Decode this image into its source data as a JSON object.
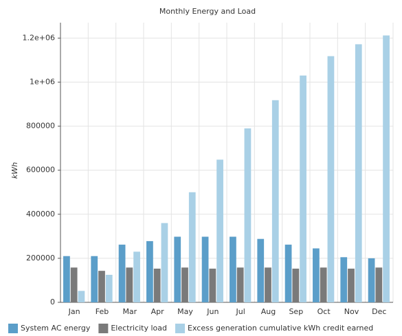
{
  "chart_data": {
    "type": "bar",
    "title": "Monthly Energy and Load",
    "y_label": "kWh",
    "categories": [
      "Jan",
      "Feb",
      "Mar",
      "Apr",
      "May",
      "Jun",
      "Jul",
      "Aug",
      "Sep",
      "Oct",
      "Nov",
      "Dec"
    ],
    "series": [
      {
        "name": "System AC energy",
        "color": "#5b9ec9",
        "values": [
          210000,
          210000,
          262000,
          278000,
          298000,
          298000,
          298000,
          288000,
          262000,
          245000,
          205000,
          200000
        ]
      },
      {
        "name": "Electricity load",
        "color": "#7a7a7a",
        "values": [
          158000,
          143000,
          158000,
          153000,
          158000,
          153000,
          158000,
          158000,
          153000,
          158000,
          153000,
          158000
        ]
      },
      {
        "name": "Excess generation cumulative kWh credit earned",
        "color": "#a9d0e6",
        "values": [
          52000,
          125000,
          230000,
          360000,
          500000,
          648000,
          790000,
          918000,
          1030000,
          1118000,
          1172000,
          1212000
        ]
      }
    ],
    "ylim": [
      0,
      1270000
    ],
    "yticks": [
      0,
      200000,
      400000,
      600000,
      800000,
      {
        "value": 1000000,
        "label": "1e+06"
      },
      {
        "value": 1200000,
        "label": "1.2e+06"
      }
    ],
    "grid": true,
    "legend": "bottom"
  }
}
